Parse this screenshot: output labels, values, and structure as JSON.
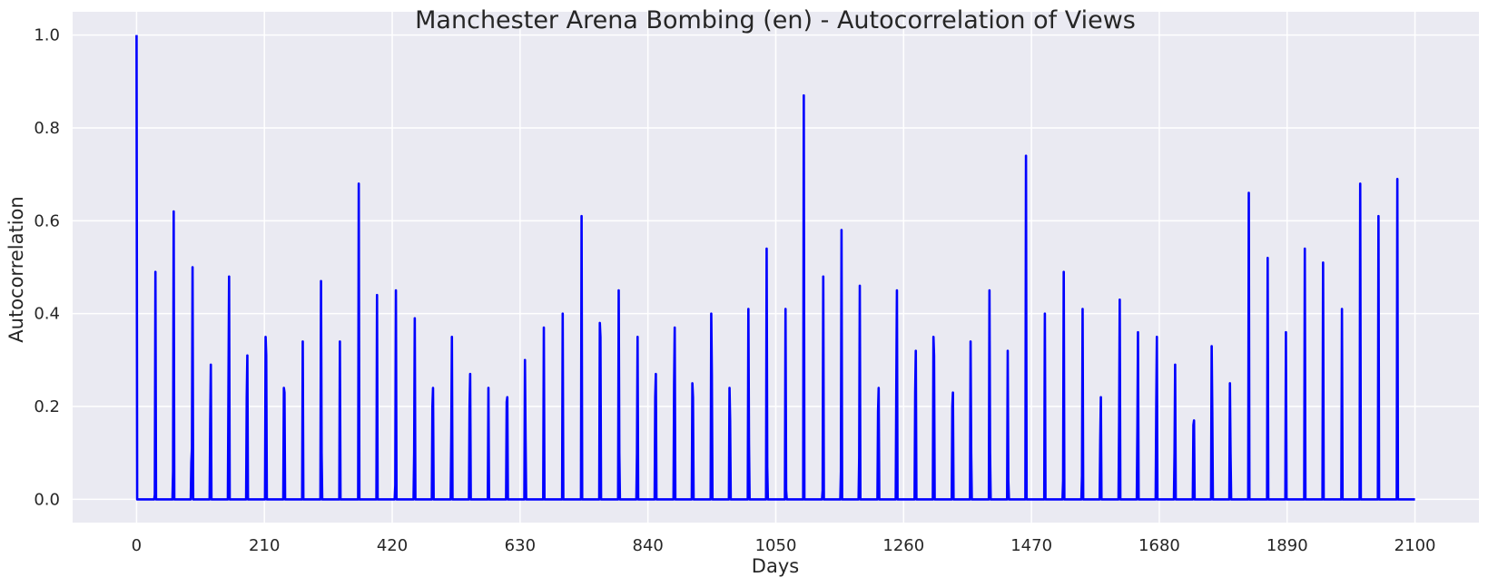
{
  "chart_data": {
    "type": "line",
    "title": "Manchester Arena Bombing (en) - Autocorrelation of Views",
    "xlabel": "Days",
    "ylabel": "Autocorrelation",
    "xlim": [
      -105,
      2205
    ],
    "ylim": [
      -0.05,
      1.05
    ],
    "xticks": [
      0,
      210,
      420,
      630,
      840,
      1050,
      1260,
      1470,
      1680,
      1890,
      2100
    ],
    "yticks": [
      0.0,
      0.2,
      0.4,
      0.6,
      0.8,
      1.0
    ],
    "ytick_labels": [
      "0.0",
      "0.2",
      "0.4",
      "0.6",
      "0.8",
      "1.0"
    ],
    "grid": true,
    "legend": "none",
    "line_color": "#0000ff",
    "background_color": "#eaeaf2",
    "max_lag": 2100,
    "series": [
      {
        "peaks": [
          {
            "lag": 0,
            "values": [
              1.0,
              0.0
            ]
          },
          {
            "lag": 30,
            "values": [
              0.01,
              0.49,
              0.0
            ]
          },
          {
            "lag": 60,
            "values": [
              0.06,
              0.62,
              0.0
            ]
          },
          {
            "lag": 90,
            "values": [
              0.08,
              0.11,
              0.5,
              0.0
            ]
          },
          {
            "lag": 121,
            "values": [
              0.17,
              0.29,
              0.0
            ]
          },
          {
            "lag": 151,
            "values": [
              0.25,
              0.48,
              0.0
            ]
          },
          {
            "lag": 181,
            "values": [
              0.22,
              0.31,
              0.0
            ]
          },
          {
            "lag": 212,
            "values": [
              0.35,
              0.31,
              0.0
            ]
          },
          {
            "lag": 242,
            "values": [
              0.24,
              0.23,
              0.0
            ]
          },
          {
            "lag": 273,
            "values": [
              0.34,
              0.0
            ]
          },
          {
            "lag": 303,
            "values": [
              0.47,
              0.1,
              0.0
            ]
          },
          {
            "lag": 334,
            "values": [
              0.34,
              0.0
            ]
          },
          {
            "lag": 365,
            "values": [
              0.68,
              0.0
            ]
          },
          {
            "lag": 395,
            "values": [
              0.44,
              0.0
            ]
          },
          {
            "lag": 425,
            "values": [
              0.03,
              0.45,
              0.0
            ]
          },
          {
            "lag": 456,
            "values": [
              0.1,
              0.39,
              0.0
            ]
          },
          {
            "lag": 486,
            "values": [
              0.2,
              0.24,
              0.0
            ]
          },
          {
            "lag": 517,
            "values": [
              0.14,
              0.35,
              0.0
            ]
          },
          {
            "lag": 547,
            "values": [
              0.2,
              0.27,
              0.0
            ]
          },
          {
            "lag": 578,
            "values": [
              0.24,
              0.0
            ]
          },
          {
            "lag": 608,
            "values": [
              0.21,
              0.22,
              0.0
            ]
          },
          {
            "lag": 638,
            "values": [
              0.3,
              0.13,
              0.0
            ]
          },
          {
            "lag": 669,
            "values": [
              0.37,
              0.0
            ]
          },
          {
            "lag": 700,
            "values": [
              0.4,
              0.0
            ]
          },
          {
            "lag": 731,
            "values": [
              0.61,
              0.0
            ]
          },
          {
            "lag": 761,
            "values": [
              0.38,
              0.35,
              0.0
            ]
          },
          {
            "lag": 792,
            "values": [
              0.45,
              0.1,
              0.0
            ]
          },
          {
            "lag": 822,
            "values": [
              0.1,
              0.35,
              0.0
            ]
          },
          {
            "lag": 852,
            "values": [
              0.22,
              0.27,
              0.0
            ]
          },
          {
            "lag": 883,
            "values": [
              0.25,
              0.37,
              0.0
            ]
          },
          {
            "lag": 913,
            "values": [
              0.25,
              0.22,
              0.0
            ]
          },
          {
            "lag": 944,
            "values": [
              0.4,
              0.27,
              0.0
            ]
          },
          {
            "lag": 974,
            "values": [
              0.24,
              0.17,
              0.0
            ]
          },
          {
            "lag": 1005,
            "values": [
              0.41,
              0.12,
              0.0
            ]
          },
          {
            "lag": 1035,
            "values": [
              0.54,
              0.07,
              0.0
            ]
          },
          {
            "lag": 1066,
            "values": [
              0.41,
              0.02,
              0.0
            ]
          },
          {
            "lag": 1096,
            "values": [
              0.87,
              0.0
            ]
          },
          {
            "lag": 1127,
            "values": [
              0.02,
              0.48,
              0.0
            ]
          },
          {
            "lag": 1157,
            "values": [
              0.06,
              0.58,
              0.0
            ]
          },
          {
            "lag": 1187,
            "values": [
              0.09,
              0.46,
              0.0
            ]
          },
          {
            "lag": 1218,
            "values": [
              0.19,
              0.24,
              0.0
            ]
          },
          {
            "lag": 1248,
            "values": [
              0.24,
              0.45,
              0.0
            ]
          },
          {
            "lag": 1279,
            "values": [
              0.23,
              0.32,
              0.0
            ]
          },
          {
            "lag": 1309,
            "values": [
              0.35,
              0.31,
              0.0
            ]
          },
          {
            "lag": 1340,
            "values": [
              0.2,
              0.23,
              0.0
            ]
          },
          {
            "lag": 1370,
            "values": [
              0.34,
              0.1,
              0.0
            ]
          },
          {
            "lag": 1401,
            "values": [
              0.45,
              0.1,
              0.0
            ]
          },
          {
            "lag": 1431,
            "values": [
              0.32,
              0.04,
              0.0
            ]
          },
          {
            "lag": 1461,
            "values": [
              0.74,
              0.0
            ]
          },
          {
            "lag": 1492,
            "values": [
              0.4,
              0.0
            ]
          },
          {
            "lag": 1522,
            "values": [
              0.04,
              0.49,
              0.0
            ]
          },
          {
            "lag": 1553,
            "values": [
              0.05,
              0.41,
              0.0
            ]
          },
          {
            "lag": 1583,
            "values": [
              0.13,
              0.22,
              0.0
            ]
          },
          {
            "lag": 1614,
            "values": [
              0.17,
              0.43,
              0.0
            ]
          },
          {
            "lag": 1644,
            "values": [
              0.15,
              0.36,
              0.0
            ]
          },
          {
            "lag": 1675,
            "values": [
              0.2,
              0.35,
              0.0
            ]
          },
          {
            "lag": 1705,
            "values": [
              0.1,
              0.29,
              0.0
            ]
          },
          {
            "lag": 1736,
            "values": [
              0.16,
              0.17,
              0.0
            ]
          },
          {
            "lag": 1766,
            "values": [
              0.33,
              0.19,
              0.0
            ]
          },
          {
            "lag": 1796,
            "values": [
              0.25,
              0.1,
              0.0
            ]
          },
          {
            "lag": 1827,
            "values": [
              0.66,
              0.0
            ]
          },
          {
            "lag": 1858,
            "values": [
              0.52,
              0.0
            ]
          },
          {
            "lag": 1888,
            "values": [
              0.36,
              0.0
            ]
          },
          {
            "lag": 1919,
            "values": [
              0.54,
              0.0
            ]
          },
          {
            "lag": 1949,
            "values": [
              0.51,
              0.0
            ]
          },
          {
            "lag": 1980,
            "values": [
              0.41,
              0.0
            ]
          },
          {
            "lag": 2010,
            "values": [
              0.68,
              0.0
            ]
          },
          {
            "lag": 2040,
            "values": [
              0.61,
              0.0
            ]
          },
          {
            "lag": 2071,
            "values": [
              0.69,
              0.0
            ]
          }
        ]
      }
    ]
  }
}
